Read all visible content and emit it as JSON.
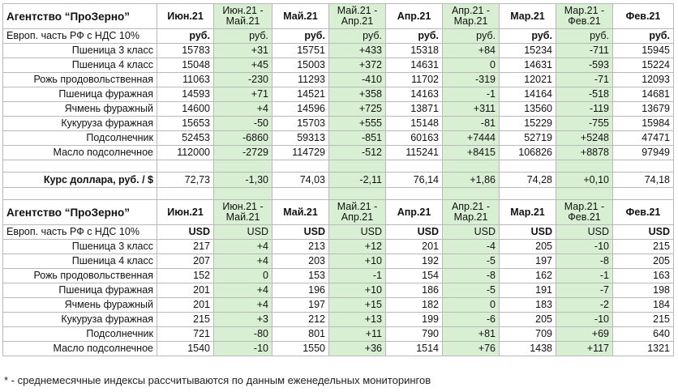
{
  "header": {
    "title": "Агентство “ПроЗерно”",
    "columns": [
      "Июн.21",
      "Июн.21 - Май.21",
      "Май.21",
      "Май.21 - Апр.21",
      "Апр.21",
      "Апр.21 - Мар.21",
      "Мар.21",
      "Мар.21 - Фев.21",
      "Фев.21"
    ]
  },
  "rub_section": {
    "unit_label": "Европ. часть РФ с НДС 10%",
    "units": [
      "руб.",
      "руб.",
      "руб.",
      "руб.",
      "руб.",
      "руб.",
      "руб.",
      "руб.",
      "руб."
    ],
    "rows": [
      {
        "name": "Пшеница 3 класс",
        "values": [
          "15783",
          "+31",
          "15751",
          "+433",
          "15318",
          "+84",
          "15234",
          "-711",
          "15945"
        ]
      },
      {
        "name": "Пшеница 4 класс",
        "values": [
          "15048",
          "+45",
          "15003",
          "+372",
          "14631",
          "0",
          "14631",
          "-593",
          "15224"
        ]
      },
      {
        "name": "Рожь продовольственная",
        "values": [
          "11063",
          "-230",
          "11293",
          "-410",
          "11702",
          "-319",
          "12021",
          "-71",
          "12093"
        ]
      },
      {
        "name": "Пшеница фуражная",
        "values": [
          "14593",
          "+71",
          "14521",
          "+358",
          "14163",
          "-1",
          "14164",
          "-518",
          "14681"
        ]
      },
      {
        "name": "Ячмень фуражный",
        "values": [
          "14600",
          "+4",
          "14596",
          "+725",
          "13871",
          "+311",
          "13560",
          "-119",
          "13679"
        ]
      },
      {
        "name": "Кукуруза фуражная",
        "values": [
          "15653",
          "-50",
          "15703",
          "+555",
          "15148",
          "-81",
          "15229",
          "-755",
          "15984"
        ]
      },
      {
        "name": "Подсолнечник",
        "values": [
          "52453",
          "-6860",
          "59313",
          "-851",
          "60163",
          "+7444",
          "52719",
          "+5248",
          "47471"
        ]
      },
      {
        "name": "Масло подсолнечное",
        "values": [
          "112000",
          "-2729",
          "114729",
          "-512",
          "115241",
          "+8415",
          "106826",
          "+8878",
          "97949"
        ]
      }
    ],
    "rate": {
      "name": "Курс доллара, руб. / $",
      "values": [
        "72,73",
        "-1,30",
        "74,03",
        "-2,11",
        "76,14",
        "+1,86",
        "74,28",
        "+0,10",
        "74,18"
      ]
    }
  },
  "usd_section": {
    "unit_label": "Европ. часть РФ с НДС 10%",
    "units": [
      "USD",
      "USD",
      "USD",
      "USD",
      "USD",
      "USD",
      "USD",
      "USD",
      "USD"
    ],
    "rows": [
      {
        "name": "Пшеница 3 класс",
        "values": [
          "217",
          "+4",
          "213",
          "+12",
          "201",
          "-4",
          "205",
          "-10",
          "215"
        ]
      },
      {
        "name": "Пшеница 4 класс",
        "values": [
          "207",
          "+4",
          "203",
          "+10",
          "192",
          "-5",
          "197",
          "-8",
          "205"
        ]
      },
      {
        "name": "Рожь продовольственная",
        "values": [
          "152",
          "0",
          "153",
          "-1",
          "154",
          "-8",
          "162",
          "-1",
          "163"
        ]
      },
      {
        "name": "Пшеница фуражная",
        "values": [
          "201",
          "+4",
          "196",
          "+10",
          "186",
          "-5",
          "191",
          "-7",
          "198"
        ]
      },
      {
        "name": "Ячмень фуражный",
        "values": [
          "201",
          "+4",
          "197",
          "+15",
          "182",
          "0",
          "183",
          "-2",
          "184"
        ]
      },
      {
        "name": "Кукуруза фуражная",
        "values": [
          "215",
          "+3",
          "212",
          "+13",
          "199",
          "-6",
          "205",
          "-10",
          "215"
        ]
      },
      {
        "name": "Подсолнечник",
        "values": [
          "721",
          "-80",
          "801",
          "+11",
          "790",
          "+81",
          "709",
          "+69",
          "640"
        ]
      },
      {
        "name": "Масло подсолнечное",
        "values": [
          "1540",
          "-10",
          "1550",
          "+36",
          "1514",
          "+76",
          "1438",
          "+117",
          "1321"
        ]
      }
    ]
  },
  "footnote": "* - среднемесячные индексы рассчитываются по данным еженедельных мониторингов",
  "colors": {
    "green_bg": "#d9efd3",
    "positive": "#1a8f1a",
    "negative": "#e01b1b",
    "border": "#b9b9b9"
  }
}
